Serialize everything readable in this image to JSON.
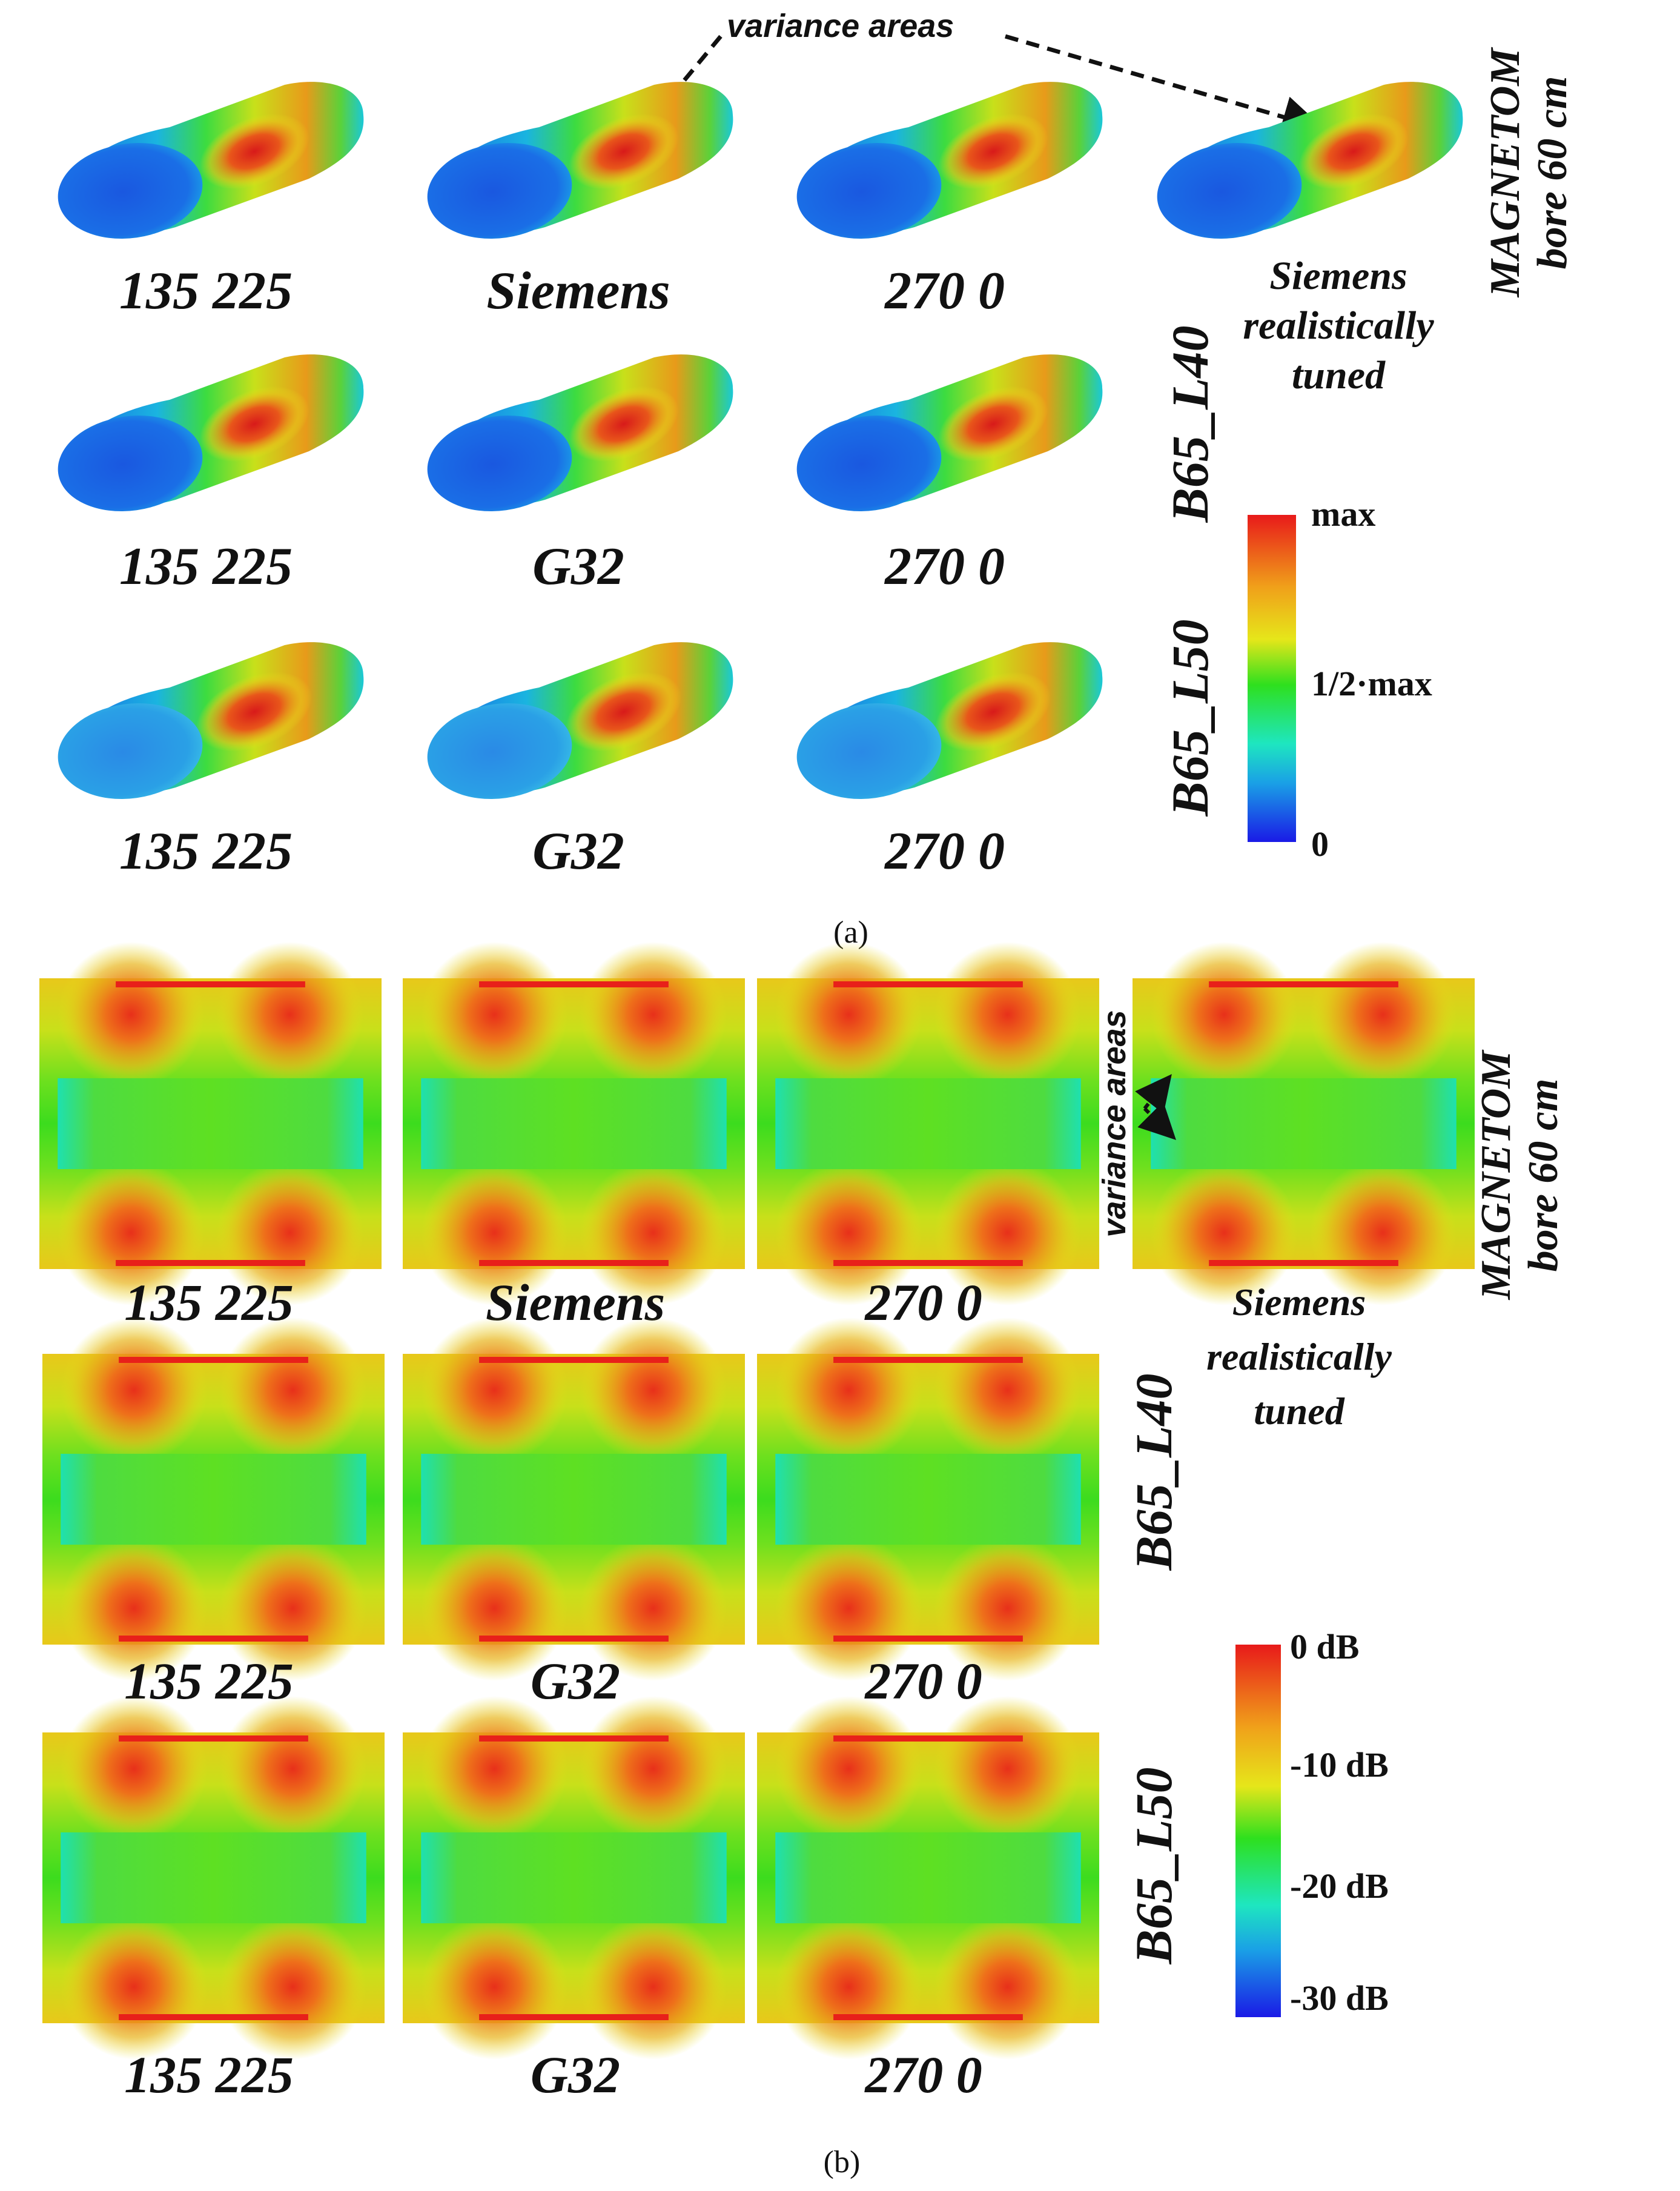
{
  "figure": {
    "panel_a": {
      "annotation": "variance areas",
      "row_labels": {
        "top": [
          "MAGNETOM",
          "bore 60 cm"
        ],
        "middle": "B65_L40",
        "bottom": "B65_L50"
      },
      "row1": [
        "135 225",
        "Siemens",
        "270 0"
      ],
      "row2": [
        "135 225",
        "G32",
        "270 0"
      ],
      "row3": [
        "135 225",
        "G32",
        "270 0"
      ],
      "tuned_label": [
        "Siemens",
        "realistically",
        "tuned"
      ],
      "colorbar": {
        "top": "max",
        "mid": "1/2·max",
        "bottom": "0"
      },
      "caption": "(a)"
    },
    "panel_b": {
      "annotation": "variance areas",
      "row_labels": {
        "top": [
          "MAGNETOM",
          "bore 60 cm"
        ],
        "middle": "B65_L40",
        "bottom": "B65_L50"
      },
      "row1": [
        "135 225",
        "Siemens",
        "270 0"
      ],
      "row2": [
        "135 225",
        "G32",
        "270 0"
      ],
      "row3": [
        "135 225",
        "G32",
        "270 0"
      ],
      "tuned_label": [
        "Siemens",
        "realistically",
        "tuned"
      ],
      "colorbar": {
        "t0": "0 dB",
        "t1": "-10 dB",
        "t2": "-20 dB",
        "t3": "-30 dB"
      },
      "caption": "(b)"
    },
    "colors": {
      "red": "#e8201a",
      "orange": "#f08a1a",
      "yellow": "#e8e81a",
      "green": "#3cdc1e",
      "cyan": "#1ee6d6",
      "blue": "#1a3ce6"
    }
  }
}
